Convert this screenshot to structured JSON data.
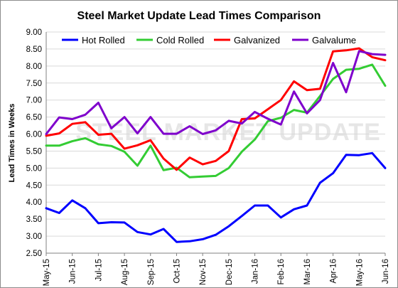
{
  "chart_data": {
    "type": "line",
    "title": "Steel Market Update Lead Times Comparison",
    "ylabel": "Lead Times in Weeks",
    "xlabel": "",
    "ylim": [
      2.5,
      9.0
    ],
    "y_ticks": [
      "2.50",
      "3.00",
      "3.50",
      "4.00",
      "4.50",
      "5.00",
      "5.50",
      "6.00",
      "6.50",
      "7.00",
      "7.50",
      "8.00",
      "8.50",
      "9.00"
    ],
    "x_tick_labels": [
      "May-15",
      "Jun-15",
      "Jul-15",
      "Aug-15",
      "Sep-15",
      "Oct-15",
      "Nov-15",
      "Dec-15",
      "Jan-16",
      "Feb-16",
      "Mar-16",
      "Apr-16",
      "May-16",
      "Jun-16"
    ],
    "grid": true,
    "legend_position": "top",
    "watermark": "STEEL MARKET UPDATE",
    "n_points": 27,
    "series": [
      {
        "name": "Hot Rolled",
        "color": "#0000ff",
        "values": [
          3.82,
          3.68,
          4.05,
          3.82,
          3.38,
          3.41,
          3.4,
          3.12,
          3.05,
          3.21,
          2.83,
          2.85,
          2.91,
          3.04,
          3.29,
          3.59,
          3.9,
          3.9,
          3.55,
          3.79,
          3.9,
          4.57,
          4.85,
          5.39,
          5.38,
          5.44,
          5.0
        ]
      },
      {
        "name": "Cold Rolled",
        "color": "#33cc33",
        "values": [
          5.66,
          5.66,
          5.79,
          5.88,
          5.7,
          5.65,
          5.48,
          5.07,
          5.66,
          4.94,
          5.01,
          4.73,
          4.75,
          4.77,
          5.0,
          5.48,
          5.84,
          6.38,
          6.48,
          6.71,
          6.63,
          7.12,
          7.62,
          7.89,
          7.92,
          8.04,
          7.42
        ]
      },
      {
        "name": "Galvanized",
        "color": "#ff0000",
        "values": [
          5.95,
          6.02,
          6.3,
          6.35,
          5.98,
          6.01,
          5.57,
          5.67,
          5.82,
          5.28,
          4.95,
          5.31,
          5.11,
          5.21,
          5.5,
          6.44,
          6.46,
          6.73,
          7.0,
          7.55,
          7.29,
          7.33,
          8.43,
          8.46,
          8.52,
          8.26,
          8.17
        ]
      },
      {
        "name": "Galvalume",
        "color": "#7f00cc",
        "values": [
          6.0,
          6.49,
          6.44,
          6.57,
          6.92,
          6.17,
          6.5,
          6.02,
          6.5,
          6.01,
          6.01,
          6.23,
          6.0,
          6.11,
          6.39,
          6.31,
          6.65,
          6.45,
          6.28,
          7.25,
          6.61,
          7.0,
          8.09,
          7.23,
          8.44,
          8.35,
          8.33
        ]
      }
    ]
  }
}
